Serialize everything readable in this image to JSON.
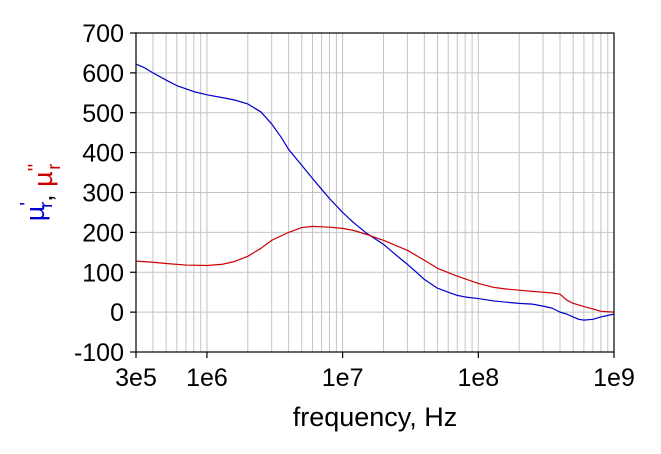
{
  "chart_data": {
    "type": "line",
    "xlabel": "frequency, Hz",
    "ylabel_parts": [
      {
        "text": "µ",
        "sub": "r",
        "prime": "'",
        "color": "#0000cc"
      },
      {
        "text": ", ",
        "color": "#000000"
      },
      {
        "text": "µ",
        "sub": "r",
        "prime": "''",
        "color": "#cc0000"
      }
    ],
    "x_scale": "log",
    "xlim": [
      300000,
      1000000000
    ],
    "ylim": [
      -100,
      700
    ],
    "grid": true,
    "x_ticks": [
      {
        "value": 300000,
        "label": "3e5"
      },
      {
        "value": 1000000,
        "label": "1e6"
      },
      {
        "value": 10000000,
        "label": "1e7"
      },
      {
        "value": 100000000,
        "label": "1e8"
      },
      {
        "value": 1000000000,
        "label": "1e9"
      }
    ],
    "y_ticks": [
      {
        "value": -100,
        "label": "-100"
      },
      {
        "value": 0,
        "label": "0"
      },
      {
        "value": 100,
        "label": "100"
      },
      {
        "value": 200,
        "label": "200"
      },
      {
        "value": 300,
        "label": "300"
      },
      {
        "value": 400,
        "label": "400"
      },
      {
        "value": 500,
        "label": "500"
      },
      {
        "value": 600,
        "label": "600"
      },
      {
        "value": 700,
        "label": "700"
      }
    ],
    "series": [
      {
        "color": "#0000cc",
        "points": [
          [
            300000,
            622
          ],
          [
            350000,
            612
          ],
          [
            400000,
            600
          ],
          [
            500000,
            582
          ],
          [
            600000,
            568
          ],
          [
            700000,
            560
          ],
          [
            800000,
            553
          ],
          [
            1000000,
            545
          ],
          [
            1300000,
            538
          ],
          [
            1600000,
            532
          ],
          [
            2000000,
            522
          ],
          [
            2500000,
            502
          ],
          [
            3000000,
            472
          ],
          [
            3500000,
            440
          ],
          [
            4000000,
            408
          ],
          [
            5000000,
            368
          ],
          [
            6000000,
            335
          ],
          [
            7000000,
            308
          ],
          [
            8000000,
            285
          ],
          [
            10000000,
            250
          ],
          [
            12000000,
            225
          ],
          [
            15000000,
            198
          ],
          [
            20000000,
            170
          ],
          [
            25000000,
            142
          ],
          [
            30000000,
            120
          ],
          [
            35000000,
            100
          ],
          [
            40000000,
            82
          ],
          [
            50000000,
            60
          ],
          [
            60000000,
            50
          ],
          [
            70000000,
            42
          ],
          [
            80000000,
            38
          ],
          [
            100000000,
            34
          ],
          [
            130000000,
            28
          ],
          [
            160000000,
            25
          ],
          [
            200000000,
            22
          ],
          [
            250000000,
            20
          ],
          [
            300000000,
            15
          ],
          [
            350000000,
            10
          ],
          [
            400000000,
            0
          ],
          [
            450000000,
            -5
          ],
          [
            500000000,
            -12
          ],
          [
            550000000,
            -18
          ],
          [
            600000000,
            -20
          ],
          [
            700000000,
            -18
          ],
          [
            800000000,
            -12
          ],
          [
            1000000000,
            -5
          ]
        ]
      },
      {
        "color": "#cc0000",
        "points": [
          [
            300000,
            128
          ],
          [
            400000,
            125
          ],
          [
            500000,
            122
          ],
          [
            700000,
            118
          ],
          [
            1000000,
            117
          ],
          [
            1300000,
            120
          ],
          [
            1600000,
            127
          ],
          [
            2000000,
            140
          ],
          [
            2500000,
            160
          ],
          [
            3000000,
            180
          ],
          [
            4000000,
            200
          ],
          [
            5000000,
            212
          ],
          [
            6000000,
            215
          ],
          [
            7000000,
            214
          ],
          [
            8000000,
            213
          ],
          [
            10000000,
            210
          ],
          [
            12000000,
            205
          ],
          [
            15000000,
            195
          ],
          [
            20000000,
            180
          ],
          [
            30000000,
            155
          ],
          [
            40000000,
            130
          ],
          [
            50000000,
            110
          ],
          [
            70000000,
            90
          ],
          [
            100000000,
            72
          ],
          [
            130000000,
            62
          ],
          [
            160000000,
            58
          ],
          [
            200000000,
            55
          ],
          [
            250000000,
            52
          ],
          [
            300000000,
            50
          ],
          [
            350000000,
            48
          ],
          [
            400000000,
            45
          ],
          [
            450000000,
            30
          ],
          [
            500000000,
            22
          ],
          [
            600000000,
            14
          ],
          [
            700000000,
            8
          ],
          [
            800000000,
            2
          ],
          [
            1000000000,
            0
          ]
        ]
      }
    ]
  }
}
